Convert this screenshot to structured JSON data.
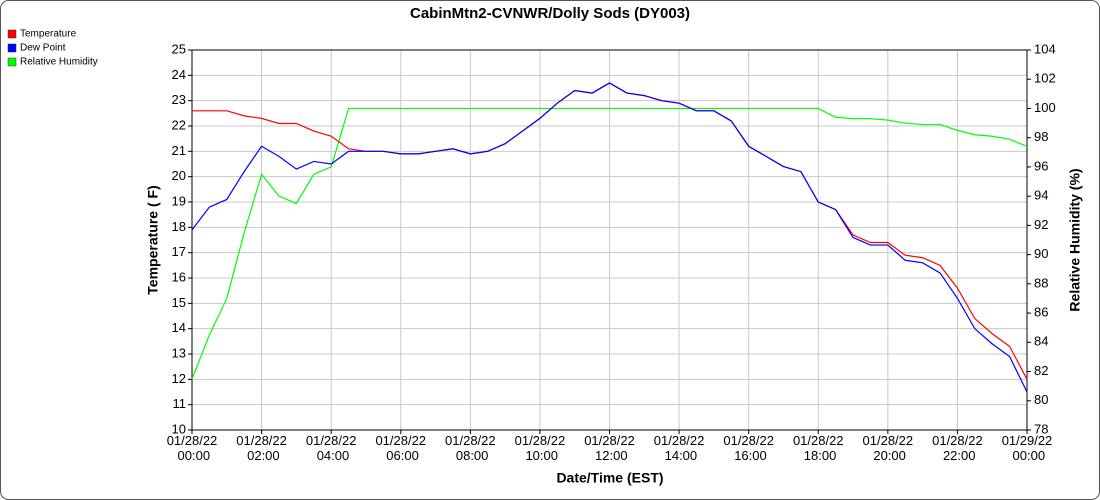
{
  "chart_data": {
    "type": "line",
    "title": "CabinMtn2-CVNWR/Dolly Sods (DY003)",
    "xlabel": "Date/Time (EST)",
    "ylabel": "Temperature ( F)",
    "y2label": "Relative Humidity (%)",
    "x": [
      0,
      0.5,
      1,
      1.5,
      2,
      2.5,
      3,
      3.5,
      4,
      4.5,
      5,
      5.5,
      6,
      6.5,
      7,
      7.5,
      8,
      8.5,
      9,
      9.5,
      10,
      10.5,
      11,
      11.5,
      12,
      12.5,
      13,
      13.5,
      14,
      14.5,
      15,
      15.5,
      16,
      16.5,
      17,
      17.5,
      18,
      18.5,
      19,
      19.5,
      20,
      20.5,
      21,
      21.5,
      22,
      22.5,
      23,
      23.5,
      24
    ],
    "series": [
      {
        "name": "Temperature",
        "color": "#ff0000",
        "values": [
          22.6,
          22.6,
          22.6,
          22.4,
          22.3,
          22.1,
          22.1,
          21.8,
          21.6,
          21.1,
          21.0,
          21.0,
          20.9,
          20.9,
          21.0,
          21.1,
          20.9,
          21.0,
          21.3,
          21.8,
          22.3,
          22.9,
          23.4,
          23.3,
          23.7,
          23.3,
          23.2,
          23.0,
          22.9,
          22.6,
          22.6,
          22.2,
          21.2,
          20.8,
          20.4,
          20.2,
          19.0,
          18.7,
          17.7,
          17.4,
          17.4,
          16.9,
          16.8,
          16.5,
          15.6,
          14.4,
          13.8,
          13.3,
          12.0
        ]
      },
      {
        "name": "Dew Point",
        "color": "#0000ff",
        "values": [
          17.9,
          18.8,
          19.1,
          20.2,
          21.2,
          20.8,
          20.3,
          20.6,
          20.5,
          21.0,
          21.0,
          21.0,
          20.9,
          20.9,
          21.0,
          21.1,
          20.9,
          21.0,
          21.3,
          21.8,
          22.3,
          22.9,
          23.4,
          23.3,
          23.7,
          23.3,
          23.2,
          23.0,
          22.9,
          22.6,
          22.6,
          22.2,
          21.2,
          20.8,
          20.4,
          20.2,
          19.0,
          18.7,
          17.6,
          17.3,
          17.3,
          16.7,
          16.6,
          16.2,
          15.2,
          14.0,
          13.4,
          12.9,
          11.5
        ]
      },
      {
        "name": "Relative Humidity",
        "color": "#00ff00",
        "axis": "y2",
        "values": [
          81.5,
          84.5,
          87,
          91.5,
          95.5,
          94,
          93.5,
          95.5,
          96,
          100,
          100,
          100,
          100,
          100,
          100,
          100,
          100,
          100,
          100,
          100,
          100,
          100,
          100,
          100,
          100,
          100,
          100,
          100,
          100,
          100,
          100,
          100,
          100,
          100,
          100,
          100,
          100,
          99.4,
          99.3,
          99.3,
          99.2,
          99.0,
          98.9,
          98.9,
          98.5,
          98.2,
          98.1,
          97.9,
          97.4
        ]
      }
    ],
    "xlim": [
      0,
      24
    ],
    "xticks": [
      {
        "value": 0,
        "label": "01/28/22 00:00"
      },
      {
        "value": 2,
        "label": "01/28/22 02:00"
      },
      {
        "value": 4,
        "label": "01/28/22 04:00"
      },
      {
        "value": 6,
        "label": "01/28/22 06:00"
      },
      {
        "value": 8,
        "label": "01/28/22 08:00"
      },
      {
        "value": 10,
        "label": "01/28/22 10:00"
      },
      {
        "value": 12,
        "label": "01/28/22 12:00"
      },
      {
        "value": 14,
        "label": "01/28/22 14:00"
      },
      {
        "value": 16,
        "label": "01/28/22 16:00"
      },
      {
        "value": 18,
        "label": "01/28/22 18:00"
      },
      {
        "value": 20,
        "label": "01/28/22 20:00"
      },
      {
        "value": 22,
        "label": "01/28/22 22:00"
      },
      {
        "value": 24,
        "label": "01/29/22 00:00"
      }
    ],
    "ylim": [
      10,
      25
    ],
    "yticks": [
      10,
      11,
      12,
      13,
      14,
      15,
      16,
      17,
      18,
      19,
      20,
      21,
      22,
      23,
      24,
      25
    ],
    "y2lim": [
      78,
      104
    ],
    "y2ticks": [
      78,
      80,
      82,
      84,
      86,
      88,
      90,
      92,
      94,
      96,
      98,
      100,
      102,
      104
    ],
    "grid": true,
    "legend": "top-left"
  }
}
